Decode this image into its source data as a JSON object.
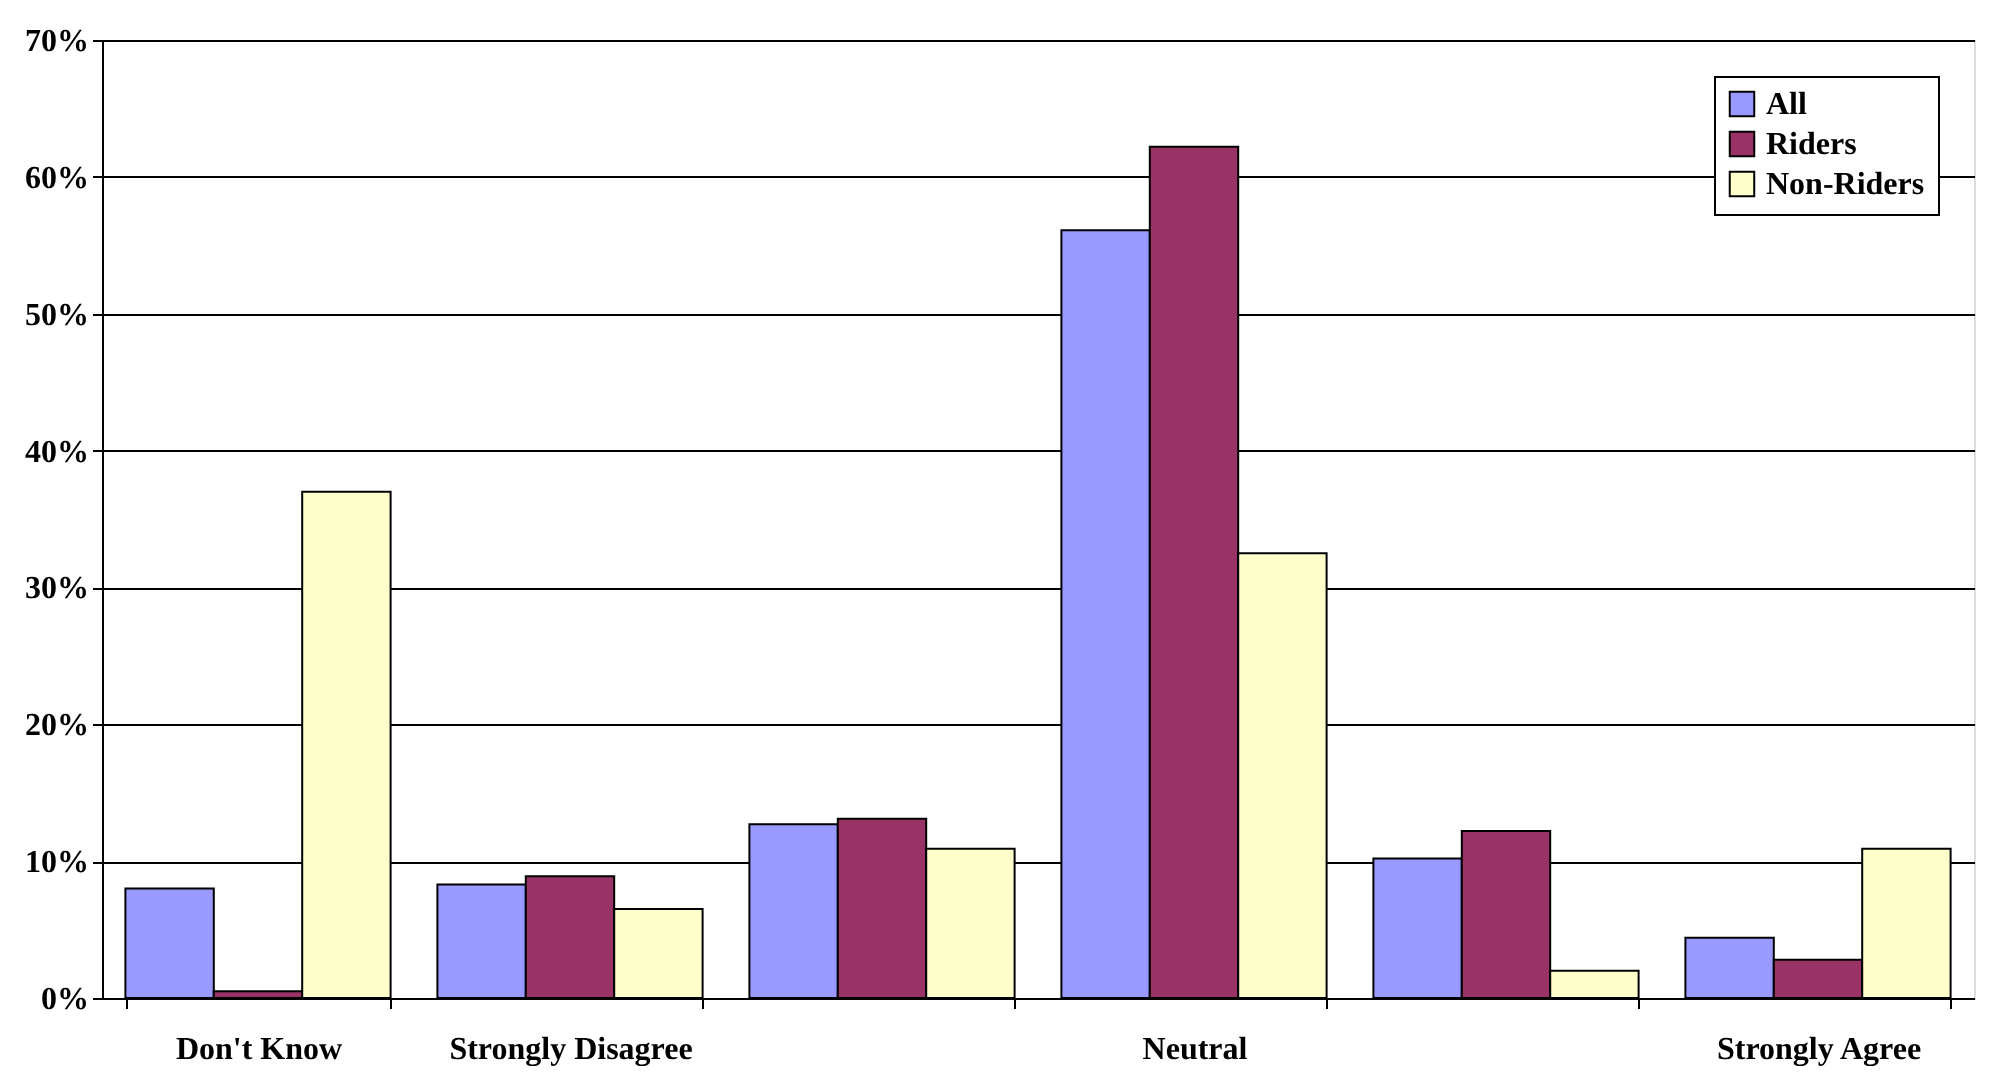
{
  "chart_data": {
    "type": "bar",
    "categories": [
      "Don't Know",
      "Strongly Disagree",
      null,
      "Neutral",
      null,
      "Strongly Agree"
    ],
    "series": [
      {
        "name": "All",
        "color": "#9999ff",
        "values": [
          8,
          8.3,
          12.7,
          56.1,
          10.2,
          4.4
        ]
      },
      {
        "name": "Riders",
        "color": "#993366",
        "values": [
          0.5,
          8.9,
          13.1,
          62.2,
          12.2,
          2.8
        ]
      },
      {
        "name": "Non-Riders",
        "color": "#ffffcc",
        "values": [
          37,
          6.5,
          10.9,
          32.5,
          2.0,
          10.9
        ]
      }
    ],
    "ylim": [
      0,
      70
    ],
    "yticks": [
      {
        "value": 0,
        "label": "0%"
      },
      {
        "value": 10,
        "label": "10%"
      },
      {
        "value": 20,
        "label": "20%"
      },
      {
        "value": 30,
        "label": "30%"
      },
      {
        "value": 40,
        "label": "40%"
      },
      {
        "value": 50,
        "label": "50%"
      },
      {
        "value": 60,
        "label": "60%"
      },
      {
        "value": 70,
        "label": "70%"
      }
    ],
    "grid": "y",
    "legend": "top right"
  }
}
